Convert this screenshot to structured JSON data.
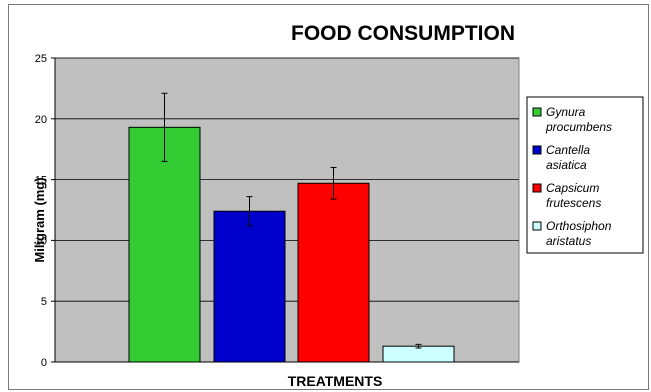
{
  "chart_data": {
    "type": "bar",
    "title": "FOOD CONSUMPTION",
    "xlabel": "TREATMENTS",
    "ylabel": "Miligram (mg)",
    "ylim": [
      0,
      25
    ],
    "yticks": [
      0,
      5,
      10,
      15,
      20,
      25
    ],
    "grid": true,
    "legend_position": "right",
    "series": [
      {
        "name": "Gynura procumbens",
        "legend_lines": [
          "Gynura",
          "procumbens"
        ],
        "value": 19.3,
        "error": 2.8,
        "color": "#33cc33"
      },
      {
        "name": "Cantella asiatica",
        "legend_lines": [
          "Cantella",
          "asiatica"
        ],
        "value": 12.4,
        "error": 1.2,
        "color": "#0000cc"
      },
      {
        "name": "Capsicum frutescens",
        "legend_lines": [
          "Capsicum",
          "frutescens"
        ],
        "value": 14.7,
        "error": 1.3,
        "color": "#ff0000"
      },
      {
        "name": "Orthosiphon aristatus",
        "legend_lines": [
          "Orthosiphon",
          "aristatus"
        ],
        "value": 1.3,
        "error": 0.15,
        "color": "#ccffff"
      }
    ]
  }
}
